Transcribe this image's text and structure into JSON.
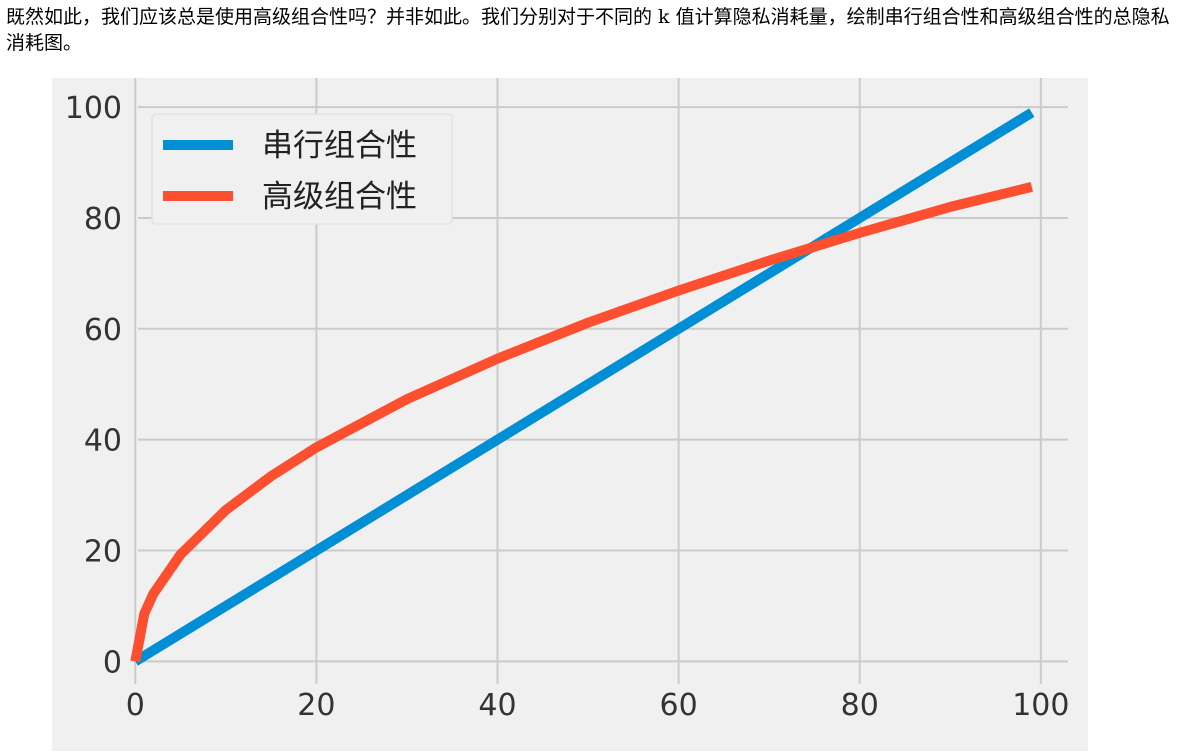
{
  "paragraph": {
    "text": "既然如此，我们应该总是使用高级组合性吗？并非如此。我们分别对于不同的 k 值计算隐私消耗量，绘制串行组合性和高级组合性的总隐私消耗图。"
  },
  "colors": {
    "background": "#f0f0f0",
    "grid": "#cbcbcb",
    "series_1": "#008fd5",
    "series_2": "#fc4f30"
  },
  "chart_data": {
    "type": "line",
    "xlim": [
      -5,
      103
    ],
    "ylim": [
      -3,
      102
    ],
    "xticks": [
      0,
      20,
      40,
      60,
      80,
      100
    ],
    "yticks": [
      0,
      20,
      40,
      60,
      80,
      100
    ],
    "grid": true,
    "legend_position": "top-left",
    "series": [
      {
        "name": "串行组合性",
        "color": "#008fd5",
        "x": [
          0,
          99
        ],
        "y": [
          0,
          99
        ]
      },
      {
        "name": "高级组合性",
        "color": "#fc4f30",
        "x": [
          0,
          1,
          2,
          5,
          10,
          15,
          20,
          30,
          40,
          50,
          60,
          70,
          74,
          80,
          90,
          99
        ],
        "y": [
          0,
          8.6,
          12.2,
          19.3,
          27.3,
          33.4,
          38.6,
          47.3,
          54.6,
          61.1,
          66.9,
          72.3,
          74.3,
          77.3,
          82.0,
          85.6
        ]
      }
    ]
  }
}
